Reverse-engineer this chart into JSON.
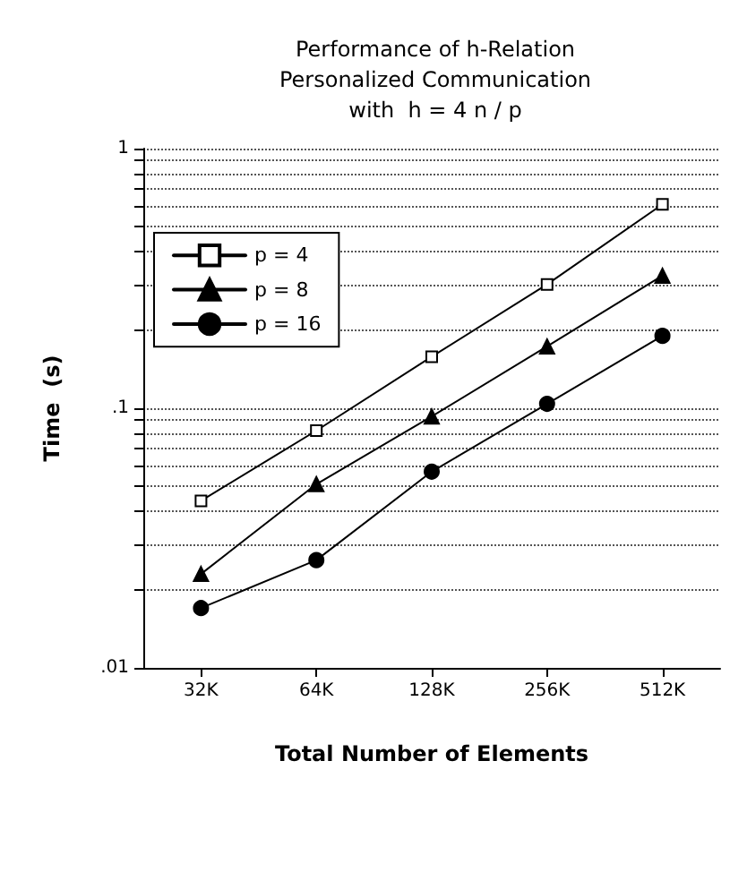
{
  "chart_data": {
    "type": "line",
    "title": "Performance of h-Relation\nPersonalized Communication\nwith  h = 4 n / p",
    "xlabel": "Total Number of Elements",
    "ylabel": "Time  (s)",
    "categories": [
      "32K",
      "64K",
      "128K",
      "256K",
      "512K"
    ],
    "series": [
      {
        "name": "p = 4",
        "color": "#000000",
        "marker": "square",
        "values": [
          0.044,
          0.082,
          0.158,
          0.3,
          0.61
        ]
      },
      {
        "name": "p = 8",
        "color": "#000000",
        "marker": "triangle",
        "values": [
          0.023,
          0.051,
          0.093,
          0.173,
          0.324
        ]
      },
      {
        "name": "p = 16",
        "color": "#000000",
        "marker": "circle",
        "values": [
          0.017,
          0.026,
          0.057,
          0.104,
          0.19
        ]
      }
    ],
    "log": "y",
    "ylim": [
      0.01,
      1
    ],
    "yticks": [
      {
        "value": 0.01,
        "label": ".01"
      },
      {
        "value": 0.02,
        "label": null
      },
      {
        "value": 0.03,
        "label": null
      },
      {
        "value": 0.04,
        "label": null
      },
      {
        "value": 0.05,
        "label": null
      },
      {
        "value": 0.06,
        "label": null
      },
      {
        "value": 0.07,
        "label": null
      },
      {
        "value": 0.08,
        "label": null
      },
      {
        "value": 0.09,
        "label": null
      },
      {
        "value": 0.1,
        "label": ".1"
      },
      {
        "value": 0.2,
        "label": null
      },
      {
        "value": 0.3,
        "label": null
      },
      {
        "value": 0.4,
        "label": null
      },
      {
        "value": 0.5,
        "label": null
      },
      {
        "value": 0.6,
        "label": null
      },
      {
        "value": 0.7,
        "label": null
      },
      {
        "value": 0.8,
        "label": null
      },
      {
        "value": 0.9,
        "label": null
      },
      {
        "value": 1,
        "label": "1"
      }
    ],
    "grid": "y",
    "legend": "top left",
    "line_style": "solid"
  }
}
